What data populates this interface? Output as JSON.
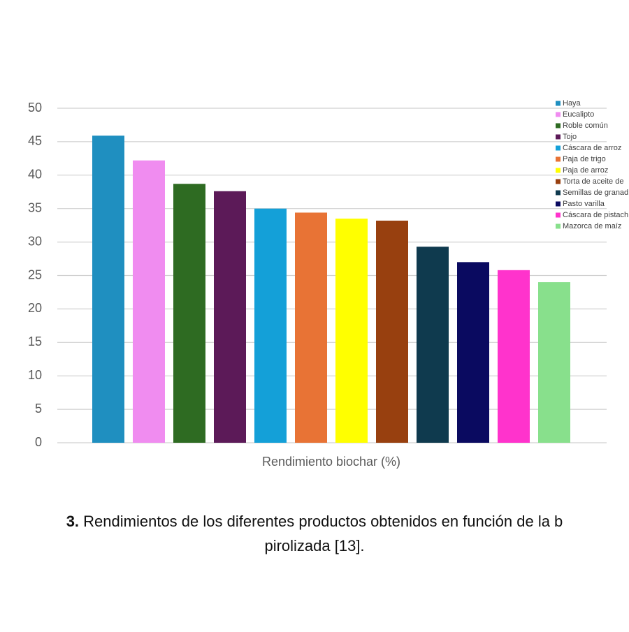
{
  "chart_data": {
    "type": "bar",
    "x_label": "Rendimiento biochar (%)",
    "categories": [
      "Haya",
      "Eucalipto",
      "Roble común",
      "Tojo",
      "Cáscara de arroz",
      "Paja de trigo",
      "Paja de arroz",
      "Torta de aceite de",
      "Semillas de granad",
      "Pasto varilla",
      "Cáscara de pistach",
      "Mazorca de maíz"
    ],
    "values": [
      45.9,
      42.2,
      38.7,
      37.6,
      35.0,
      34.4,
      33.5,
      33.2,
      29.3,
      27.0,
      25.8,
      24.0
    ],
    "colors": [
      "#1f8fc0",
      "#f08cf0",
      "#2e6b22",
      "#5c1a58",
      "#14a0d8",
      "#e87335",
      "#ffff00",
      "#98400f",
      "#0f3a4e",
      "#0a0a60",
      "#ff33cc",
      "#88e08c"
    ],
    "ylim": [
      0,
      50
    ],
    "yticks": [
      0,
      5,
      10,
      15,
      20,
      25,
      30,
      35,
      40,
      45,
      50
    ],
    "grid": true,
    "legend": "top-right",
    "caption_label": "3.",
    "caption_lines": [
      "Rendimientos de los diferentes productos obtenidos en función de la b",
      "pirolizada [13]."
    ]
  }
}
